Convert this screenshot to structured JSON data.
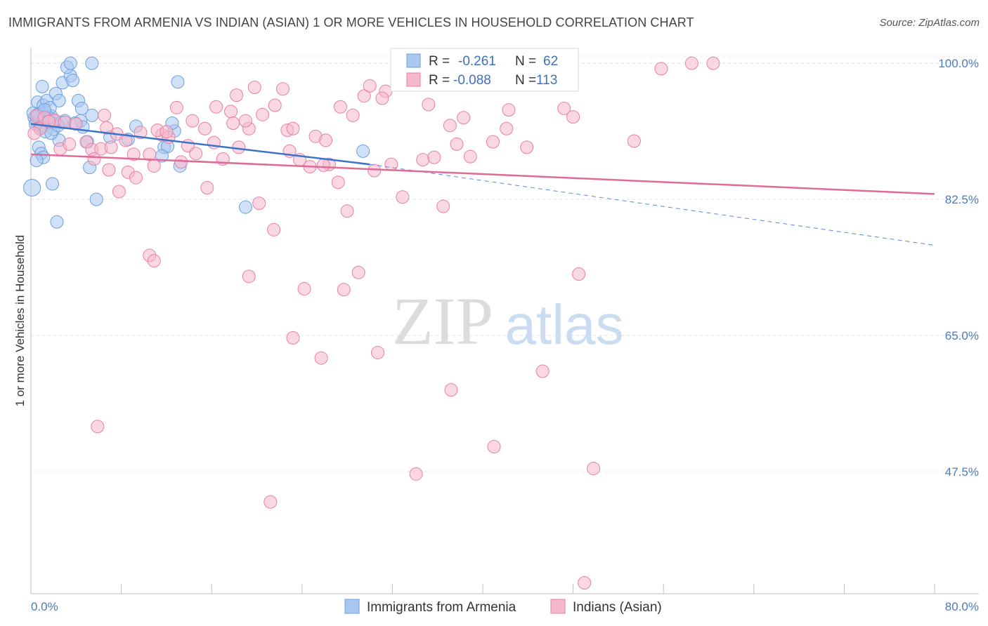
{
  "chart_data": {
    "type": "scatter",
    "title": "IMMIGRANTS FROM ARMENIA VS INDIAN (ASIAN) 1 OR MORE VEHICLES IN HOUSEHOLD CORRELATION CHART",
    "source": "Source: ZipAtlas.com",
    "xlabel": "",
    "ylabel": "1 or more Vehicles in Household",
    "xlim": [
      0,
      80
    ],
    "ylim": [
      31.8,
      102.0
    ],
    "x_tick_labels": {
      "min": "0.0%",
      "max": "80.0%"
    },
    "y_ticks": [
      {
        "value": 100.0,
        "label": "100.0%"
      },
      {
        "value": 82.5,
        "label": "82.5%"
      },
      {
        "value": 65.0,
        "label": "65.0%"
      },
      {
        "value": 47.5,
        "label": "47.5%"
      }
    ],
    "watermark": {
      "zip": "ZIP",
      "atlas": "atlas"
    },
    "legend": [
      {
        "r_label": "R =",
        "r_value": "-0.261",
        "n_label": "N =",
        "n_value": "62"
      },
      {
        "r_label": "R =",
        "r_value": "-0.088",
        "n_label": "N =",
        "n_value": "113"
      }
    ],
    "series": [
      {
        "name": "Immigrants from Armenia",
        "color": "#6a9fe0",
        "fill": "#a9c8f0",
        "trend": {
          "x0": 0,
          "y0": 92.2,
          "x1": 30,
          "y1": 87.0,
          "dash_to_x": 80,
          "dash_to_y": 76.6
        },
        "points": [
          [
            0.3,
            93.0
          ],
          [
            0.5,
            92.5
          ],
          [
            0.8,
            91.8
          ],
          [
            1.0,
            93.5
          ],
          [
            1.2,
            92.0
          ],
          [
            1.5,
            92.8
          ],
          [
            1.8,
            93.2
          ],
          [
            2.0,
            91.5
          ],
          [
            0.6,
            95.0
          ],
          [
            1.1,
            94.6
          ],
          [
            1.4,
            95.2
          ],
          [
            1.7,
            94.3
          ],
          [
            2.2,
            96.1
          ],
          [
            2.5,
            95.2
          ],
          [
            1.0,
            97.0
          ],
          [
            2.8,
            97.5
          ],
          [
            3.5,
            98.4
          ],
          [
            3.7,
            97.8
          ],
          [
            3.2,
            99.5
          ],
          [
            3.5,
            100.0
          ],
          [
            5.4,
            100.0
          ],
          [
            4.2,
            95.2
          ],
          [
            4.5,
            94.2
          ],
          [
            5.4,
            93.3
          ],
          [
            4.4,
            92.6
          ],
          [
            4.6,
            91.8
          ],
          [
            5.0,
            89.9
          ],
          [
            2.5,
            90.1
          ],
          [
            0.7,
            89.2
          ],
          [
            0.9,
            88.4
          ],
          [
            1.1,
            87.9
          ],
          [
            0.5,
            87.5
          ],
          [
            5.2,
            86.6
          ],
          [
            1.9,
            84.5
          ],
          [
            5.8,
            82.5
          ],
          [
            2.3,
            79.6
          ],
          [
            0.1,
            84.0
          ],
          [
            0.4,
            92.2
          ],
          [
            0.9,
            92.0
          ],
          [
            1.3,
            91.2
          ],
          [
            1.6,
            93.0
          ],
          [
            2.1,
            92.6
          ],
          [
            2.7,
            92.4
          ],
          [
            3.0,
            92.6
          ],
          [
            7.0,
            90.5
          ],
          [
            8.6,
            90.2
          ],
          [
            9.3,
            91.9
          ],
          [
            11.8,
            89.2
          ],
          [
            12.1,
            89.3
          ],
          [
            12.7,
            91.3
          ],
          [
            12.5,
            92.3
          ],
          [
            13.2,
            86.8
          ],
          [
            13.0,
            97.6
          ],
          [
            19.0,
            81.5
          ],
          [
            29.4,
            88.7
          ],
          [
            0.2,
            93.6
          ],
          [
            0.6,
            93.4
          ],
          [
            1.2,
            94.0
          ],
          [
            1.8,
            91.0
          ],
          [
            2.4,
            92.0
          ],
          [
            3.9,
            92.3
          ],
          [
            11.6,
            88.1
          ]
        ]
      },
      {
        "name": "Indians (Asian)",
        "color": "#e87fa4",
        "fill": "#f5b8cc",
        "trend": {
          "x0": 0,
          "y0": 88.3,
          "x1": 80,
          "y1": 83.2
        },
        "points": [
          [
            0.5,
            93.2
          ],
          [
            0.8,
            91.6
          ],
          [
            1.2,
            93.0
          ],
          [
            2.1,
            92.7
          ],
          [
            2.6,
            89.0
          ],
          [
            3.0,
            92.4
          ],
          [
            3.4,
            89.6
          ],
          [
            4.9,
            89.9
          ],
          [
            5.4,
            88.9
          ],
          [
            6.2,
            89.0
          ],
          [
            6.5,
            93.3
          ],
          [
            7.1,
            89.2
          ],
          [
            7.6,
            90.9
          ],
          [
            8.4,
            90.1
          ],
          [
            9.1,
            88.3
          ],
          [
            9.7,
            91.1
          ],
          [
            10.5,
            88.3
          ],
          [
            10.9,
            86.8
          ],
          [
            11.6,
            90.8
          ],
          [
            12.2,
            90.5
          ],
          [
            13.3,
            87.3
          ],
          [
            13.9,
            89.4
          ],
          [
            14.6,
            88.4
          ],
          [
            15.4,
            91.6
          ],
          [
            16.2,
            89.8
          ],
          [
            17.0,
            87.7
          ],
          [
            17.7,
            93.8
          ],
          [
            18.4,
            89.2
          ],
          [
            19.3,
            91.6
          ],
          [
            20.5,
            93.4
          ],
          [
            21.6,
            94.6
          ],
          [
            22.7,
            91.4
          ],
          [
            23.8,
            87.6
          ],
          [
            25.2,
            90.6
          ],
          [
            26.4,
            87.0
          ],
          [
            27.4,
            94.4
          ],
          [
            28.5,
            93.3
          ],
          [
            29.5,
            95.8
          ],
          [
            30.4,
            86.2
          ],
          [
            31.4,
            96.4
          ],
          [
            32.9,
            82.8
          ],
          [
            34.7,
            87.6
          ],
          [
            35.7,
            87.9
          ],
          [
            37.1,
            92.0
          ],
          [
            38.3,
            93.0
          ],
          [
            40.9,
            89.9
          ],
          [
            42.3,
            94.0
          ],
          [
            43.9,
            89.2
          ],
          [
            47.2,
            94.2
          ],
          [
            48.0,
            93.1
          ],
          [
            48.5,
            72.9
          ],
          [
            53.4,
            90.0
          ],
          [
            55.8,
            99.3
          ],
          [
            0.3,
            91.0
          ],
          [
            1.6,
            92.5
          ],
          [
            4.0,
            92.2
          ],
          [
            5.6,
            87.7
          ],
          [
            6.9,
            86.3
          ],
          [
            7.8,
            83.5
          ],
          [
            8.6,
            86.0
          ],
          [
            9.3,
            85.3
          ],
          [
            10.5,
            75.3
          ],
          [
            11.2,
            91.4
          ],
          [
            12.0,
            91.2
          ],
          [
            14.3,
            92.6
          ],
          [
            15.6,
            84.0
          ],
          [
            16.4,
            94.4
          ],
          [
            17.9,
            92.3
          ],
          [
            19.0,
            92.6
          ],
          [
            19.8,
            96.9
          ],
          [
            20.2,
            82.0
          ],
          [
            21.5,
            78.6
          ],
          [
            22.3,
            96.7
          ],
          [
            23.2,
            91.6
          ],
          [
            24.7,
            86.7
          ],
          [
            25.9,
            86.9
          ],
          [
            27.2,
            84.7
          ],
          [
            28.0,
            81.0
          ],
          [
            29.0,
            73.1
          ],
          [
            31.1,
            95.5
          ],
          [
            31.9,
            87.0
          ],
          [
            32.4,
            99.8
          ],
          [
            33.6,
            97.3
          ],
          [
            35.2,
            94.7
          ],
          [
            36.5,
            81.6
          ],
          [
            37.7,
            89.6
          ],
          [
            38.9,
            88.0
          ],
          [
            40.2,
            99.8
          ],
          [
            42.1,
            91.6
          ],
          [
            45.0,
            99.3
          ],
          [
            58.5,
            100.0
          ],
          [
            60.4,
            100.0
          ],
          [
            5.9,
            53.3
          ],
          [
            10.9,
            74.6
          ],
          [
            19.3,
            72.6
          ],
          [
            21.2,
            43.6
          ],
          [
            23.2,
            64.7
          ],
          [
            24.2,
            71.0
          ],
          [
            25.7,
            62.1
          ],
          [
            27.7,
            70.9
          ],
          [
            30.7,
            62.8
          ],
          [
            34.1,
            47.2
          ],
          [
            37.2,
            58.0
          ],
          [
            41.0,
            50.7
          ],
          [
            45.3,
            60.4
          ],
          [
            49.8,
            47.9
          ],
          [
            49.0,
            33.2
          ],
          [
            6.7,
            91.7
          ],
          [
            12.9,
            94.3
          ],
          [
            18.2,
            95.9
          ],
          [
            22.9,
            88.7
          ],
          [
            26.1,
            90.1
          ],
          [
            30.0,
            97.1
          ]
        ]
      }
    ],
    "bottom_legend": [
      "Immigrants from Armenia",
      "Indians (Asian)"
    ]
  }
}
